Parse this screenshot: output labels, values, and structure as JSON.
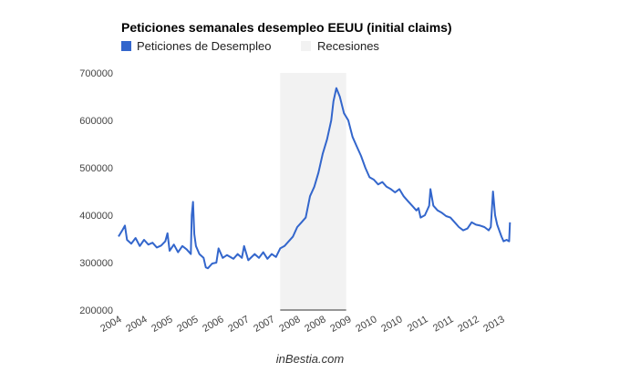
{
  "chart_data": {
    "type": "line",
    "title": "Peticiones semanales desempleo EEUU (initial claims)",
    "legend": {
      "placement": "top-left",
      "entries": [
        {
          "name": "Peticiones de Desempleo",
          "color": "#3366cc",
          "kind": "line"
        },
        {
          "name": "Recesiones",
          "color": "#f2f2f2",
          "kind": "area"
        }
      ]
    },
    "xlabel": "",
    "ylabel": "",
    "ylim": [
      200000,
      700000
    ],
    "yticks": [
      "200000",
      "300000",
      "400000",
      "500000",
      "600000",
      "700000"
    ],
    "xlim": [
      2004.0,
      2013.0
    ],
    "xticks": [
      "2004",
      "2004",
      "2005",
      "2005",
      "2006",
      "2007",
      "2007",
      "2008",
      "2008",
      "2009",
      "2010",
      "2010",
      "2011",
      "2011",
      "2012",
      "2013"
    ],
    "grid": false,
    "recession_band": {
      "x_start": 2007.8,
      "x_end": 2009.35
    },
    "series": [
      {
        "name": "Peticiones de Desempleo",
        "color": "#3366cc",
        "points": [
          [
            2004.0,
            355000
          ],
          [
            2004.1,
            370000
          ],
          [
            2004.15,
            378000
          ],
          [
            2004.2,
            348000
          ],
          [
            2004.3,
            340000
          ],
          [
            2004.4,
            352000
          ],
          [
            2004.5,
            335000
          ],
          [
            2004.6,
            348000
          ],
          [
            2004.7,
            338000
          ],
          [
            2004.8,
            342000
          ],
          [
            2004.9,
            332000
          ],
          [
            2005.0,
            336000
          ],
          [
            2005.1,
            345000
          ],
          [
            2005.15,
            362000
          ],
          [
            2005.2,
            325000
          ],
          [
            2005.3,
            338000
          ],
          [
            2005.4,
            322000
          ],
          [
            2005.5,
            335000
          ],
          [
            2005.6,
            328000
          ],
          [
            2005.7,
            318000
          ],
          [
            2005.72,
            400000
          ],
          [
            2005.75,
            428000
          ],
          [
            2005.78,
            360000
          ],
          [
            2005.82,
            335000
          ],
          [
            2005.9,
            318000
          ],
          [
            2006.0,
            310000
          ],
          [
            2006.05,
            290000
          ],
          [
            2006.1,
            288000
          ],
          [
            2006.2,
            298000
          ],
          [
            2006.3,
            300000
          ],
          [
            2006.35,
            330000
          ],
          [
            2006.45,
            310000
          ],
          [
            2006.55,
            316000
          ],
          [
            2006.7,
            308000
          ],
          [
            2006.8,
            318000
          ],
          [
            2006.9,
            310000
          ],
          [
            2006.95,
            335000
          ],
          [
            2007.05,
            305000
          ],
          [
            2007.2,
            318000
          ],
          [
            2007.3,
            310000
          ],
          [
            2007.4,
            322000
          ],
          [
            2007.5,
            308000
          ],
          [
            2007.6,
            318000
          ],
          [
            2007.7,
            312000
          ],
          [
            2007.8,
            330000
          ],
          [
            2007.9,
            335000
          ],
          [
            2008.0,
            345000
          ],
          [
            2008.1,
            355000
          ],
          [
            2008.2,
            375000
          ],
          [
            2008.3,
            385000
          ],
          [
            2008.4,
            395000
          ],
          [
            2008.5,
            440000
          ],
          [
            2008.6,
            460000
          ],
          [
            2008.7,
            490000
          ],
          [
            2008.8,
            530000
          ],
          [
            2008.9,
            560000
          ],
          [
            2009.0,
            600000
          ],
          [
            2009.05,
            640000
          ],
          [
            2009.12,
            668000
          ],
          [
            2009.2,
            650000
          ],
          [
            2009.3,
            615000
          ],
          [
            2009.4,
            600000
          ],
          [
            2009.5,
            565000
          ],
          [
            2009.6,
            545000
          ],
          [
            2009.7,
            525000
          ],
          [
            2009.8,
            500000
          ],
          [
            2009.9,
            480000
          ],
          [
            2010.0,
            475000
          ],
          [
            2010.1,
            465000
          ],
          [
            2010.2,
            470000
          ],
          [
            2010.3,
            460000
          ],
          [
            2010.4,
            455000
          ],
          [
            2010.5,
            448000
          ],
          [
            2010.6,
            455000
          ],
          [
            2010.7,
            440000
          ],
          [
            2010.8,
            430000
          ],
          [
            2010.9,
            420000
          ],
          [
            2011.0,
            410000
          ],
          [
            2011.05,
            415000
          ],
          [
            2011.1,
            395000
          ],
          [
            2011.2,
            400000
          ],
          [
            2011.3,
            420000
          ],
          [
            2011.33,
            455000
          ],
          [
            2011.4,
            420000
          ],
          [
            2011.5,
            410000
          ],
          [
            2011.6,
            405000
          ],
          [
            2011.7,
            398000
          ],
          [
            2011.8,
            395000
          ],
          [
            2011.9,
            385000
          ],
          [
            2012.0,
            375000
          ],
          [
            2012.1,
            368000
          ],
          [
            2012.2,
            372000
          ],
          [
            2012.3,
            385000
          ],
          [
            2012.4,
            380000
          ],
          [
            2012.5,
            378000
          ],
          [
            2012.6,
            375000
          ],
          [
            2012.7,
            368000
          ],
          [
            2012.75,
            375000
          ],
          [
            2012.8,
            450000
          ],
          [
            2012.85,
            400000
          ],
          [
            2012.9,
            380000
          ],
          [
            2013.0,
            355000
          ],
          [
            2013.05,
            345000
          ],
          [
            2013.12,
            348000
          ],
          [
            2013.18,
            345000
          ],
          [
            2013.2,
            385000
          ]
        ]
      }
    ]
  },
  "footer": {
    "credit": "inBestia.com"
  }
}
